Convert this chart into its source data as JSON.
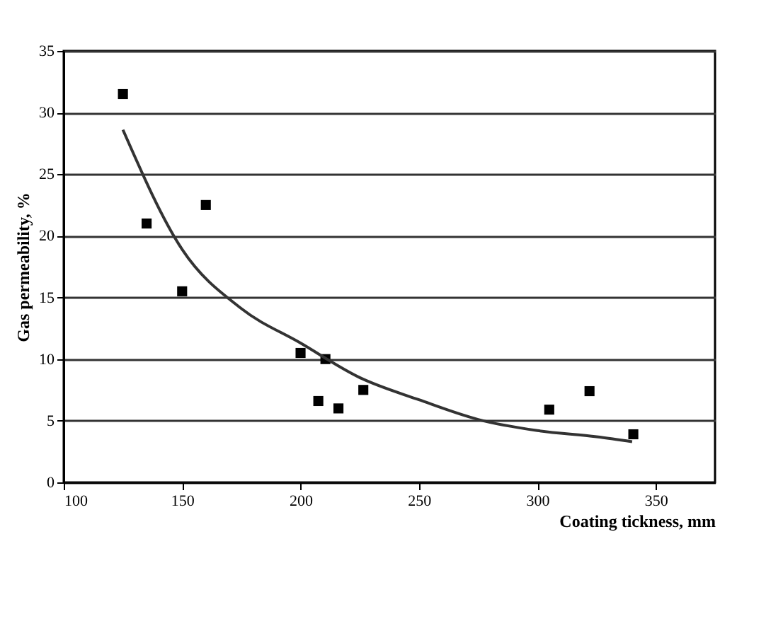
{
  "chart_data": {
    "type": "scatter",
    "xlabel": "Coating tickness, mm",
    "ylabel": "Gas permeability, %",
    "marker": "square",
    "grid": "y",
    "xlim": [
      100,
      375
    ],
    "xticks": [
      100,
      150,
      200,
      250,
      300,
      350
    ],
    "ylim": [
      0,
      35
    ],
    "yticks": [
      0,
      5,
      10,
      15,
      20,
      25,
      30,
      35
    ],
    "series": [
      {
        "color": "#000000",
        "x": [
          125,
          135,
          150,
          160,
          200,
          207.5,
          210.5,
          216,
          226.5,
          305,
          322,
          340.5
        ],
        "values": [
          31.5,
          21,
          15.5,
          22.5,
          10.5,
          6.6,
          10,
          6,
          7.5,
          5.9,
          7.4,
          3.9
        ]
      },
      {
        "type": "line",
        "color": "#333333",
        "line_style": "solid",
        "marker": "none",
        "x": [
          125,
          150,
          175,
          200,
          225,
          250,
          275,
          300,
          325,
          340
        ],
        "values": [
          28.6,
          18.9,
          14.1,
          11.3,
          8.5,
          6.7,
          5.1,
          4.2,
          3.7,
          3.3
        ]
      }
    ]
  }
}
